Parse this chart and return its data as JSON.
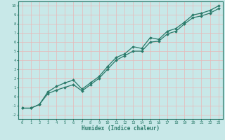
{
  "xlabel": "Humidex (Indice chaleur)",
  "background_color": "#c8e8e8",
  "grid_color": "#e8b8b8",
  "line_color": "#2a7a6a",
  "spine_color": "#2a7a6a",
  "xlim": [
    -0.5,
    23.5
  ],
  "ylim": [
    -2.5,
    10.5
  ],
  "xticks": [
    0,
    1,
    2,
    3,
    4,
    5,
    6,
    7,
    8,
    9,
    10,
    11,
    12,
    13,
    14,
    15,
    16,
    17,
    18,
    19,
    20,
    21,
    22,
    23
  ],
  "yticks": [
    -2,
    -1,
    0,
    1,
    2,
    3,
    4,
    5,
    6,
    7,
    8,
    9,
    10
  ],
  "line1_x": [
    0,
    1,
    2,
    3,
    4,
    5,
    6,
    7,
    8,
    9,
    10,
    11,
    12,
    13,
    14,
    15,
    16,
    17,
    18,
    19,
    20,
    21,
    22,
    23
  ],
  "line1_y": [
    -1.3,
    -1.3,
    -0.9,
    0.5,
    1.1,
    1.5,
    1.8,
    0.8,
    1.5,
    2.2,
    3.3,
    4.3,
    4.7,
    5.5,
    5.3,
    6.5,
    6.3,
    7.2,
    7.5,
    8.2,
    9.0,
    9.2,
    9.5,
    10.0
  ],
  "line2_x": [
    0,
    1,
    2,
    3,
    4,
    5,
    6,
    7,
    8,
    9,
    10,
    11,
    12,
    13,
    14,
    15,
    16,
    17,
    18,
    19,
    20,
    21,
    22,
    23
  ],
  "line2_y": [
    -1.3,
    -1.3,
    -0.9,
    0.3,
    0.7,
    1.0,
    1.3,
    0.6,
    1.3,
    2.0,
    3.0,
    4.0,
    4.5,
    5.0,
    5.0,
    6.0,
    6.1,
    6.9,
    7.2,
    8.0,
    8.7,
    8.9,
    9.2,
    9.7
  ]
}
